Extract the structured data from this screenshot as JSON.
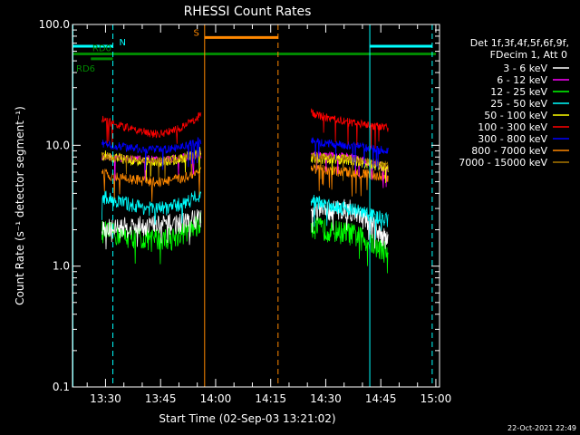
{
  "chart_data": {
    "type": "line",
    "title": "RHESSI Count Rates",
    "xlabel": "Start Time (02-Sep-03 13:21:02)",
    "ylabel": "Count Rate (s⁻¹ detector segment⁻¹)",
    "ylim": [
      0.1,
      100
    ],
    "y_scale": "log",
    "y_ticks": [
      {
        "value": 0.1,
        "label": "0.1"
      },
      {
        "value": 1,
        "label": "1.0"
      },
      {
        "value": 10,
        "label": "10.0"
      },
      {
        "value": 100,
        "label": "100.0"
      }
    ],
    "xlim": [
      "13:21",
      "15:01"
    ],
    "x_ticks": [
      "13:30",
      "13:45",
      "14:00",
      "14:15",
      "14:30",
      "14:45",
      "15:00"
    ],
    "grid": false,
    "legend": {
      "placement": "right",
      "header": [
        "Det 1f,3f,4f,5f,6f,9f,",
        "FDecim 1, Att 0"
      ]
    },
    "series": [
      {
        "name": "3 - 6 keV",
        "color": "#ffffff",
        "seg1": [
          2.0,
          2.2,
          2.6
        ],
        "seg2": [
          2.8,
          3.0,
          1.6
        ]
      },
      {
        "name": "6 - 12 keV",
        "color": "#ff00ff",
        "seg1": [
          8.0,
          7.6,
          8.5
        ],
        "seg2": [
          8.5,
          8.0,
          6.5
        ]
      },
      {
        "name": "12 - 25 keV",
        "color": "#00ff00",
        "seg1": [
          2.0,
          1.7,
          2.3
        ],
        "seg2": [
          2.2,
          1.9,
          1.3
        ]
      },
      {
        "name": "25 - 50 keV",
        "color": "#00ffff",
        "seg1": [
          3.9,
          3.0,
          4.0
        ],
        "seg2": [
          3.6,
          3.0,
          2.4
        ]
      },
      {
        "name": "50 - 100 keV",
        "color": "#ffff00",
        "seg1": [
          8.5,
          7.3,
          9.0
        ],
        "seg2": [
          8.0,
          7.6,
          6.5
        ]
      },
      {
        "name": "100 - 300 keV",
        "color": "#ff0000",
        "seg1": [
          17.0,
          12.5,
          18.0
        ],
        "seg2": [
          19.0,
          15.5,
          14.0
        ]
      },
      {
        "name": "300 - 800 keV",
        "color": "#0000ff",
        "seg1": [
          10.5,
          9.2,
          11.0
        ],
        "seg2": [
          11.0,
          10.0,
          9.0
        ]
      },
      {
        "name": "800 - 7000 keV",
        "color": "#ff8800",
        "seg1": [
          6.0,
          5.0,
          6.2
        ],
        "seg2": [
          6.5,
          6.0,
          5.5
        ]
      },
      {
        "name": "7000 - 15000 keV",
        "color": "#aa7700",
        "seg1": [
          8.2,
          7.5,
          8.5
        ],
        "seg2": [
          8.2,
          7.8,
          6.8
        ]
      }
    ],
    "segments": [
      {
        "start": "13:29",
        "end": "13:56"
      },
      {
        "start": "14:26",
        "end": "14:47"
      }
    ],
    "annotations": {
      "bars": [
        {
          "label": "N",
          "color": "#00ffff",
          "start": "13:21",
          "end": "13:32",
          "value": 66
        },
        {
          "label": "",
          "color": "#00ffff",
          "start": "14:42",
          "end": "14:59",
          "value": 66
        },
        {
          "label": "S",
          "color": "#ff8800",
          "start": "13:57",
          "end": "14:17",
          "value": 78
        },
        {
          "label": "RD0",
          "color": "#008800",
          "start": "13:21",
          "end": "15:00",
          "value": 57
        },
        {
          "label": "RD6",
          "color": "#008800",
          "start": "13:26",
          "end": "13:32",
          "value": 52
        }
      ],
      "vlines": [
        {
          "time": "13:21",
          "color": "#00ffff",
          "style": "solid"
        },
        {
          "time": "13:32",
          "color": "#00ffff",
          "style": "dashed"
        },
        {
          "time": "13:57",
          "color": "#ff8800",
          "style": "solid"
        },
        {
          "time": "14:17",
          "color": "#ff8800",
          "style": "dashed"
        },
        {
          "time": "14:42",
          "color": "#00ffff",
          "style": "solid"
        },
        {
          "time": "14:59",
          "color": "#00ffff",
          "style": "dashed"
        }
      ]
    },
    "timestamp": "22-Oct-2021 22:49"
  }
}
